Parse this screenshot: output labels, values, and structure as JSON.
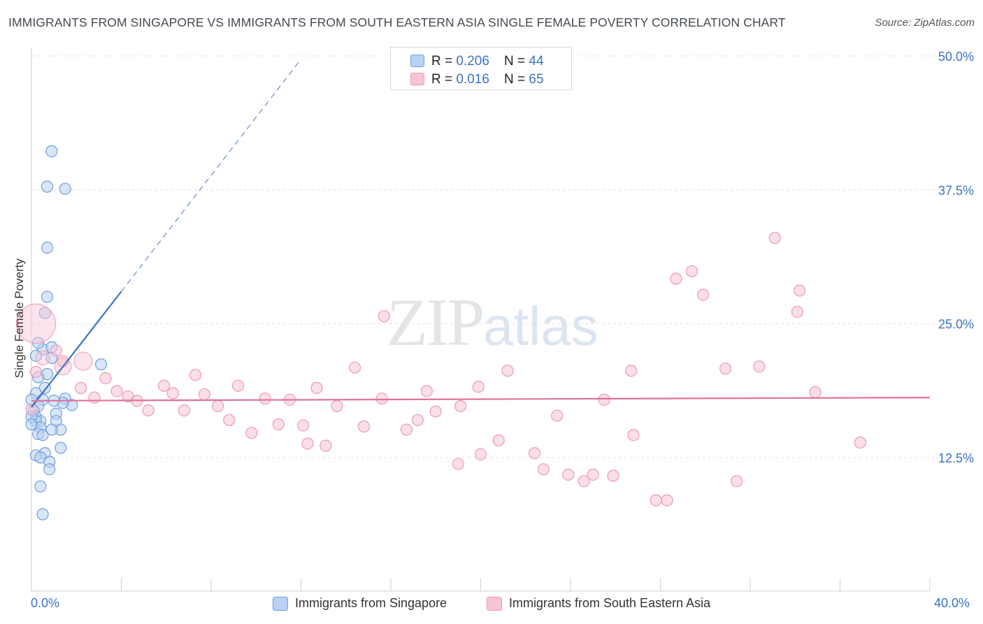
{
  "title": "IMMIGRANTS FROM SINGAPORE VS IMMIGRANTS FROM SOUTH EASTERN ASIA SINGLE FEMALE POVERTY CORRELATION CHART",
  "source": "Source: ZipAtlas.com",
  "watermark": {
    "zip": "ZIP",
    "atlas": "atlas"
  },
  "colors": {
    "blue": "#3a72c4",
    "blue_fill": "#b9d2f3",
    "blue_stroke": "#6f9fdc",
    "pink": "#e0729a",
    "pink_fill": "#f6c4d4",
    "pink_stroke": "#ec9ab6",
    "grid": "#e3e3e3"
  },
  "legend_top": [
    {
      "r_label": "R = ",
      "r_value": "0.206",
      "n_label": "N = ",
      "n_value": "44"
    },
    {
      "r_label": "R = ",
      "r_value": "0.016",
      "n_label": "N = ",
      "n_value": "65"
    }
  ],
  "chart_data": {
    "type": "scatter",
    "title": "IMMIGRANTS FROM SINGAPORE VS IMMIGRANTS FROM SOUTH EASTERN ASIA SINGLE FEMALE POVERTY CORRELATION CHART",
    "xlabel": "",
    "ylabel": "Single Female Poverty",
    "xlim": [
      0,
      40
    ],
    "ylim": [
      0,
      52
    ],
    "x_tick_labels": [
      "0.0%",
      "40.0%"
    ],
    "y_ticks": [
      12.5,
      25.0,
      37.5,
      50.0
    ],
    "y_tick_labels": [
      "12.5%",
      "25.0%",
      "37.5%",
      "50.0%"
    ],
    "grid": true,
    "legend_position": "bottom",
    "series": [
      {
        "name": "Immigrants from Singapore",
        "color": "blue",
        "R": 0.206,
        "N": 44,
        "trend": {
          "x0": 0.0,
          "y0": 17.2,
          "x1": 4.0,
          "y1": 28.0,
          "dash_x1": 12.0,
          "dash_y1": 49.7
        },
        "points": [
          [
            0.9,
            41.1
          ],
          [
            0.7,
            37.8
          ],
          [
            1.5,
            37.6
          ],
          [
            0.7,
            32.1
          ],
          [
            0.7,
            27.5
          ],
          [
            0.6,
            26.0
          ],
          [
            0.5,
            22.6
          ],
          [
            0.9,
            22.8
          ],
          [
            0.9,
            21.8
          ],
          [
            3.1,
            21.2
          ],
          [
            0.2,
            22.0
          ],
          [
            0.7,
            20.3
          ],
          [
            0.3,
            20.0
          ],
          [
            0.6,
            19.0
          ],
          [
            0.2,
            18.5
          ],
          [
            1.5,
            18.0
          ],
          [
            0.0,
            17.9
          ],
          [
            0.5,
            17.9
          ],
          [
            1.8,
            17.4
          ],
          [
            1.4,
            17.6
          ],
          [
            1.0,
            17.8
          ],
          [
            0.3,
            17.3
          ],
          [
            1.1,
            16.6
          ],
          [
            0.2,
            16.3
          ],
          [
            1.1,
            15.9
          ],
          [
            0.4,
            15.9
          ],
          [
            0.2,
            15.9
          ],
          [
            0.4,
            15.3
          ],
          [
            1.3,
            15.1
          ],
          [
            0.3,
            14.7
          ],
          [
            0.5,
            14.6
          ],
          [
            1.3,
            13.4
          ],
          [
            0.6,
            12.9
          ],
          [
            0.2,
            12.7
          ],
          [
            0.4,
            12.5
          ],
          [
            0.8,
            12.1
          ],
          [
            0.8,
            11.4
          ],
          [
            0.4,
            9.8
          ],
          [
            0.5,
            7.2
          ],
          [
            0.3,
            23.2
          ],
          [
            0.1,
            16.9
          ],
          [
            0.0,
            16.3
          ],
          [
            0.0,
            15.6
          ],
          [
            0.9,
            15.1
          ]
        ],
        "large_points": []
      },
      {
        "name": "Immigrants from South Eastern Asia",
        "color": "pink",
        "R": 0.016,
        "N": 65,
        "trend": {
          "x0": 0.0,
          "y0": 17.8,
          "x1": 40.0,
          "y1": 18.1
        },
        "points": [
          [
            33.1,
            33.0
          ],
          [
            29.4,
            29.9
          ],
          [
            28.7,
            29.2
          ],
          [
            34.2,
            28.1
          ],
          [
            29.9,
            27.7
          ],
          [
            34.1,
            26.1
          ],
          [
            15.7,
            25.7
          ],
          [
            14.4,
            20.9
          ],
          [
            21.2,
            20.6
          ],
          [
            26.7,
            20.6
          ],
          [
            30.9,
            20.8
          ],
          [
            32.4,
            21.0
          ],
          [
            7.3,
            20.2
          ],
          [
            3.3,
            19.9
          ],
          [
            2.2,
            19.0
          ],
          [
            5.9,
            19.2
          ],
          [
            9.2,
            19.2
          ],
          [
            12.7,
            19.0
          ],
          [
            17.6,
            18.7
          ],
          [
            19.9,
            19.1
          ],
          [
            3.8,
            18.7
          ],
          [
            4.3,
            18.2
          ],
          [
            6.3,
            18.5
          ],
          [
            7.7,
            18.4
          ],
          [
            2.8,
            18.1
          ],
          [
            10.4,
            18.0
          ],
          [
            11.5,
            17.9
          ],
          [
            15.6,
            18.0
          ],
          [
            25.5,
            17.9
          ],
          [
            34.9,
            18.6
          ],
          [
            4.7,
            17.8
          ],
          [
            8.3,
            17.3
          ],
          [
            13.6,
            17.3
          ],
          [
            19.1,
            17.3
          ],
          [
            5.2,
            16.9
          ],
          [
            6.8,
            16.9
          ],
          [
            18.0,
            16.8
          ],
          [
            8.8,
            16.0
          ],
          [
            17.2,
            16.0
          ],
          [
            23.4,
            16.4
          ],
          [
            11.0,
            15.6
          ],
          [
            12.1,
            15.5
          ],
          [
            14.8,
            15.4
          ],
          [
            9.8,
            14.8
          ],
          [
            16.7,
            15.1
          ],
          [
            26.8,
            14.6
          ],
          [
            20.8,
            14.1
          ],
          [
            12.3,
            13.8
          ],
          [
            13.1,
            13.6
          ],
          [
            20.0,
            12.8
          ],
          [
            22.4,
            12.9
          ],
          [
            36.9,
            13.9
          ],
          [
            19.0,
            11.9
          ],
          [
            22.8,
            11.4
          ],
          [
            23.9,
            10.9
          ],
          [
            24.6,
            10.3
          ],
          [
            25.0,
            10.9
          ],
          [
            25.9,
            10.8
          ],
          [
            31.4,
            10.3
          ],
          [
            27.8,
            8.5
          ],
          [
            28.3,
            8.5
          ],
          [
            1.4,
            21.5
          ],
          [
            1.1,
            22.5
          ],
          [
            0.2,
            20.5
          ],
          [
            0.0,
            17.0
          ]
        ],
        "large_points": [
          [
            0.2,
            25.0,
            28
          ],
          [
            2.3,
            21.5,
            13
          ],
          [
            1.4,
            21.0,
            12
          ],
          [
            0.5,
            21.8,
            10
          ]
        ]
      }
    ]
  },
  "bottom_legend": [
    {
      "label": "Immigrants from Singapore"
    },
    {
      "label": "Immigrants from South Eastern Asia"
    }
  ]
}
